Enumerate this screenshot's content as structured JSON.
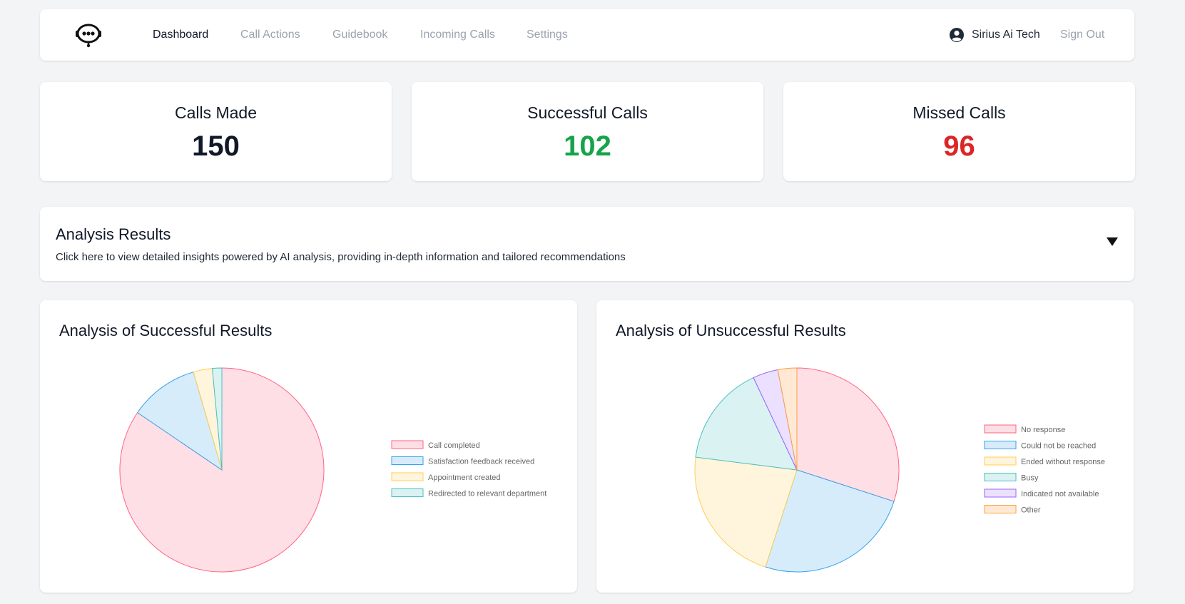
{
  "navbar": {
    "logo_icon": "headset-robot-icon",
    "links": [
      {
        "label": "Dashboard",
        "active": true
      },
      {
        "label": "Call Actions",
        "active": false
      },
      {
        "label": "Guidebook",
        "active": false
      },
      {
        "label": "Incoming Calls",
        "active": false
      },
      {
        "label": "Settings",
        "active": false
      }
    ],
    "user_icon": "user-circle-icon",
    "user_name": "Sirius Ai Tech",
    "sign_out_label": "Sign Out"
  },
  "stats": {
    "calls_made": {
      "label": "Calls Made",
      "value": "150",
      "color": "#111827"
    },
    "successful_calls": {
      "label": "Successful Calls",
      "value": "102",
      "color": "#16a34a"
    },
    "missed_calls": {
      "label": "Missed Calls",
      "value": "96",
      "color": "#dc2626"
    }
  },
  "analysis": {
    "title": "Analysis Results",
    "description": "Click here to view detailed insights powered by AI analysis, providing in-depth information and tailored recommendations",
    "toggle_icon": "caret-down-icon"
  },
  "chart_data": [
    {
      "type": "pie",
      "title": "Analysis of Successful Results",
      "categories": [
        "Call completed",
        "Satisfaction feedback received",
        "Appointment created",
        "Redirected to relevant department"
      ],
      "values": [
        84.5,
        11.0,
        3.0,
        1.5
      ],
      "colors": [
        {
          "fill": "#ffdfe6",
          "stroke": "#ff6384"
        },
        {
          "fill": "#d7ecfb",
          "stroke": "#36a2eb"
        },
        {
          "fill": "#fff5dd",
          "stroke": "#ffce56"
        },
        {
          "fill": "#dbf2f2",
          "stroke": "#4bc0c0"
        }
      ],
      "legend": "right"
    },
    {
      "type": "pie",
      "title": "Analysis of Unsuccessful Results",
      "categories": [
        "No response",
        "Could not be reached",
        "Ended without response",
        "Busy",
        "Indicated not available",
        "Other"
      ],
      "values": [
        30,
        25,
        22,
        16,
        4,
        3
      ],
      "colors": [
        {
          "fill": "#ffdfe6",
          "stroke": "#ff6384"
        },
        {
          "fill": "#d7ecfb",
          "stroke": "#36a2eb"
        },
        {
          "fill": "#fff5dd",
          "stroke": "#ffce56"
        },
        {
          "fill": "#dbf2f2",
          "stroke": "#4bc0c0"
        },
        {
          "fill": "#ebe0ff",
          "stroke": "#9966ff"
        },
        {
          "fill": "#ffe9d5",
          "stroke": "#ff9f40"
        }
      ],
      "legend": "right"
    }
  ]
}
